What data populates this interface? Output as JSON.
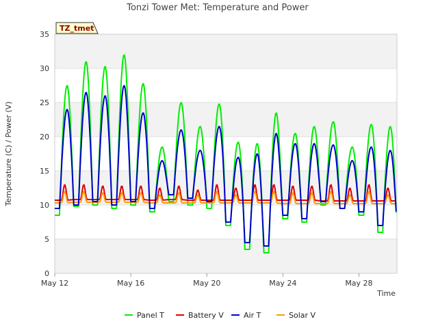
{
  "chart_data": {
    "type": "line",
    "title": "Tonzi Tower Met: Temperature and Power",
    "badge": "TZ_tmet",
    "xlabel": "Time",
    "ylabel": "Temperature (C) / Power (V)",
    "xlim": [
      "2023-05-12",
      "2023-05-30"
    ],
    "ylim": [
      0,
      35
    ],
    "x_ticks": [
      {
        "date": "2023-05-12",
        "label": "May 12"
      },
      {
        "date": "2023-05-16",
        "label": "May 16"
      },
      {
        "date": "2023-05-20",
        "label": "May 20"
      },
      {
        "date": "2023-05-24",
        "label": "May 24"
      },
      {
        "date": "2023-05-28",
        "label": "May 28"
      }
    ],
    "y_ticks": [
      0,
      5,
      10,
      15,
      20,
      25,
      30,
      35
    ],
    "grid": true,
    "legend_position": "bottom",
    "daily_extremes": {
      "days": [
        "2023-05-12",
        "2023-05-13",
        "2023-05-14",
        "2023-05-15",
        "2023-05-16",
        "2023-05-17",
        "2023-05-18",
        "2023-05-19",
        "2023-05-20",
        "2023-05-21",
        "2023-05-22",
        "2023-05-23",
        "2023-05-24",
        "2023-05-25",
        "2023-05-26",
        "2023-05-27",
        "2023-05-28",
        "2023-05-29"
      ],
      "series": [
        {
          "name": "Panel T",
          "color": "#00ee00",
          "min": [
            8.5,
            9.8,
            10.0,
            9.5,
            10.0,
            9.0,
            10.5,
            10.0,
            9.5,
            7.0,
            3.5,
            3.0,
            8.0,
            7.5,
            10.0,
            9.5,
            8.5,
            6.0
          ],
          "max": [
            27.5,
            31.0,
            30.3,
            32.0,
            27.8,
            18.5,
            25.0,
            21.5,
            24.8,
            19.2,
            19.0,
            23.5,
            20.5,
            21.5,
            22.2,
            18.5,
            21.8,
            21.5
          ]
        },
        {
          "name": "Battery V",
          "color": "#dd0000",
          "min": [
            10.7,
            10.8,
            10.8,
            10.8,
            10.8,
            10.7,
            10.8,
            10.7,
            10.7,
            10.7,
            10.7,
            10.7,
            10.7,
            10.7,
            10.6,
            10.6,
            10.6,
            10.6
          ],
          "max": [
            13.0,
            13.0,
            12.8,
            12.8,
            12.8,
            12.5,
            12.8,
            12.2,
            13.0,
            12.5,
            13.0,
            13.0,
            12.8,
            12.8,
            13.0,
            12.5,
            13.0,
            12.5
          ]
        },
        {
          "name": "Air T",
          "color": "#0000cc",
          "min": [
            9.5,
            10.0,
            10.5,
            10.0,
            10.5,
            9.5,
            11.5,
            11.0,
            10.5,
            7.5,
            4.5,
            4.0,
            8.5,
            8.0,
            10.5,
            9.5,
            9.0,
            7.0
          ],
          "max": [
            24.0,
            26.5,
            26.0,
            27.5,
            23.5,
            16.5,
            21.0,
            18.0,
            21.5,
            17.0,
            17.5,
            20.5,
            19.0,
            19.0,
            18.8,
            16.5,
            18.5,
            18.0
          ]
        },
        {
          "name": "Solar V",
          "color": "#ff9900",
          "min": [
            10.3,
            10.4,
            10.4,
            10.4,
            10.4,
            10.3,
            10.3,
            10.3,
            10.3,
            10.3,
            10.3,
            10.3,
            10.2,
            10.2,
            10.2,
            10.2,
            10.2,
            10.2
          ],
          "max": [
            12.0,
            12.0,
            11.8,
            11.8,
            11.8,
            11.5,
            11.8,
            11.5,
            12.0,
            11.5,
            12.0,
            12.0,
            11.8,
            11.8,
            12.0,
            11.5,
            12.0,
            11.5
          ]
        }
      ]
    }
  }
}
